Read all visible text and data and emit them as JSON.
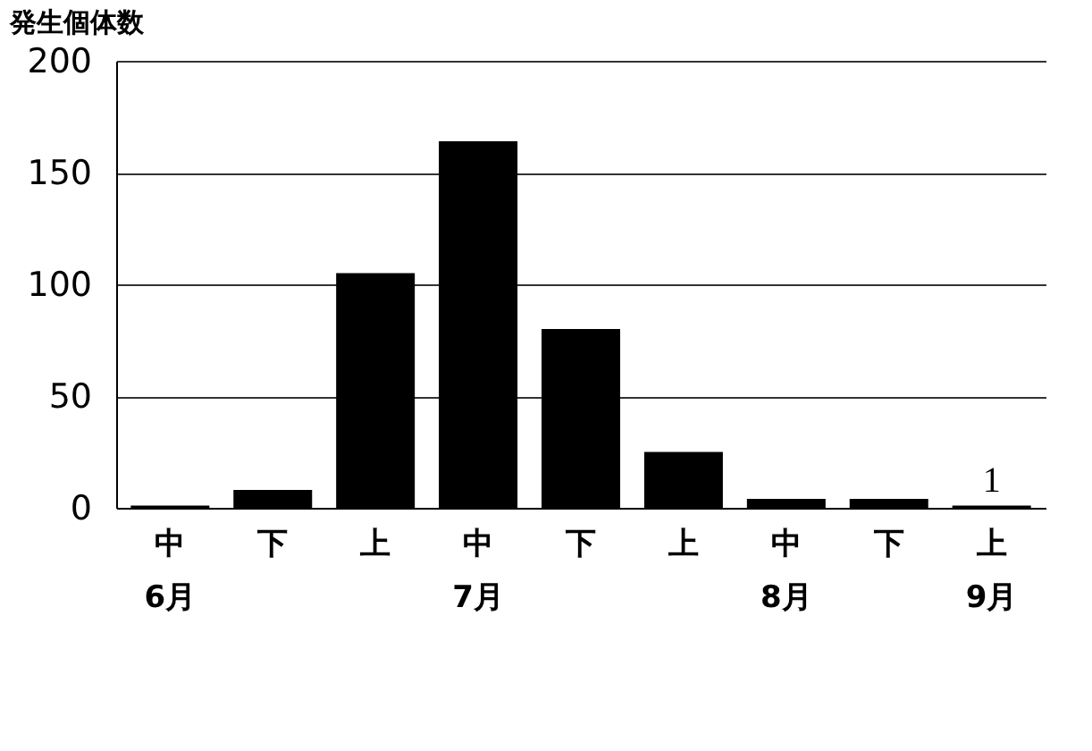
{
  "chart_data": {
    "type": "bar",
    "ylabel": "発生個体数",
    "categories": [
      "中\n6月",
      "下",
      "上",
      "中\n7月",
      "下",
      "上",
      "中\n8月",
      "下",
      "上\n9月"
    ],
    "values": [
      1,
      8,
      105,
      164,
      80,
      25,
      4,
      4,
      1
    ],
    "value_labels": [
      null,
      null,
      null,
      null,
      null,
      null,
      null,
      null,
      "1"
    ],
    "color": "#000000",
    "ylim": [
      0,
      200
    ],
    "yticks": [
      0,
      50,
      100,
      150,
      200
    ],
    "grid": "y"
  }
}
